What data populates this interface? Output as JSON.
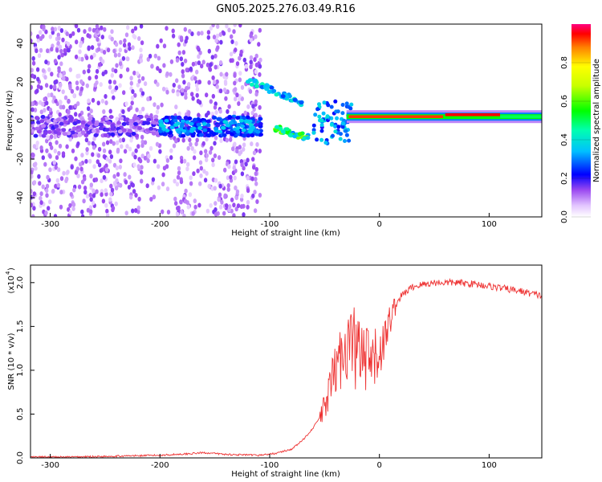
{
  "title": "GN05.2025.276.03.49.R16",
  "chart_data": [
    {
      "type": "heatmap",
      "title": "GN05.2025.276.03.49.R16",
      "xlabel": "Height of straight line (km)",
      "ylabel": "Frequency (Hz)",
      "xlim": [
        -318,
        148
      ],
      "ylim": [
        -50,
        50
      ],
      "xticks": [
        -300,
        -200,
        -100,
        0,
        100
      ],
      "yticks": [
        -40,
        -20,
        0,
        20,
        40
      ],
      "colorbar": {
        "label": "Normalized spectral amplitude",
        "range": [
          0,
          1
        ],
        "ticks": [
          "0.0",
          "0.2",
          "0.4",
          "0.6",
          "0.8"
        ],
        "colormap": [
          "#ffffff",
          "#e2c4ff",
          "#9a48f0",
          "#5a00dd",
          "#0000ff",
          "#00c0ff",
          "#00ffb0",
          "#00ff00",
          "#c8ff00",
          "#ffff00",
          "#ff8000",
          "#ff0000",
          "#ff0080"
        ]
      },
      "features": [
        {
          "x_range": [
            -318,
            -110
          ],
          "y_range": [
            -50,
            50
          ],
          "level": 0.1,
          "description_source": "scattered noise"
        },
        {
          "x_range": [
            -200,
            -110
          ],
          "y": -3,
          "level": 0.25
        },
        {
          "x_range": [
            -120,
            -70
          ],
          "y_start": 21,
          "y_end": 9,
          "level": 0.35
        },
        {
          "x_range": [
            -90,
            -65
          ],
          "y_start": -4,
          "y_end": -9,
          "level": 0.6
        },
        {
          "x_range": [
            -30,
            60
          ],
          "y": 2,
          "level": 0.95
        },
        {
          "x_range": [
            60,
            110
          ],
          "y": 3,
          "level": 0.95
        },
        {
          "x_range": [
            110,
            148
          ],
          "y": 2,
          "level": 0.5
        }
      ]
    },
    {
      "type": "line",
      "xlabel": "Height of straight line (km)",
      "ylabel": "SNR (10 * v/v)",
      "y_scale_note": "(x10",
      "y_scale_exp": "4",
      "xlim": [
        -318,
        148
      ],
      "ylim": [
        0,
        2.2
      ],
      "xticks": [
        -300,
        -200,
        -100,
        0,
        100
      ],
      "yticks": [
        "0.0",
        "0.5",
        "1.0",
        "1.5",
        "2.0"
      ],
      "color": "#ee3333",
      "series": [
        {
          "x": [
            -318,
            -280,
            -240,
            -200,
            -170,
            -160,
            -140,
            -110,
            -95,
            -80,
            -70,
            -60,
            -50,
            -45,
            -40,
            -35,
            -30,
            -25,
            -20,
            -15,
            -10,
            -5,
            0,
            5,
            10,
            15,
            20,
            30,
            40,
            50,
            60,
            70,
            80,
            90,
            100,
            110,
            120,
            130,
            140,
            148
          ],
          "y": [
            0.01,
            0.01,
            0.02,
            0.03,
            0.05,
            0.06,
            0.04,
            0.03,
            0.05,
            0.1,
            0.2,
            0.35,
            0.55,
            0.8,
            1.0,
            1.15,
            1.3,
            1.3,
            1.2,
            1.1,
            1.05,
            1.1,
            1.2,
            1.35,
            1.6,
            1.75,
            1.85,
            1.95,
            1.98,
            2.0,
            2.0,
            2.0,
            1.99,
            1.98,
            1.96,
            1.94,
            1.92,
            1.9,
            1.87,
            1.85
          ]
        }
      ]
    }
  ]
}
